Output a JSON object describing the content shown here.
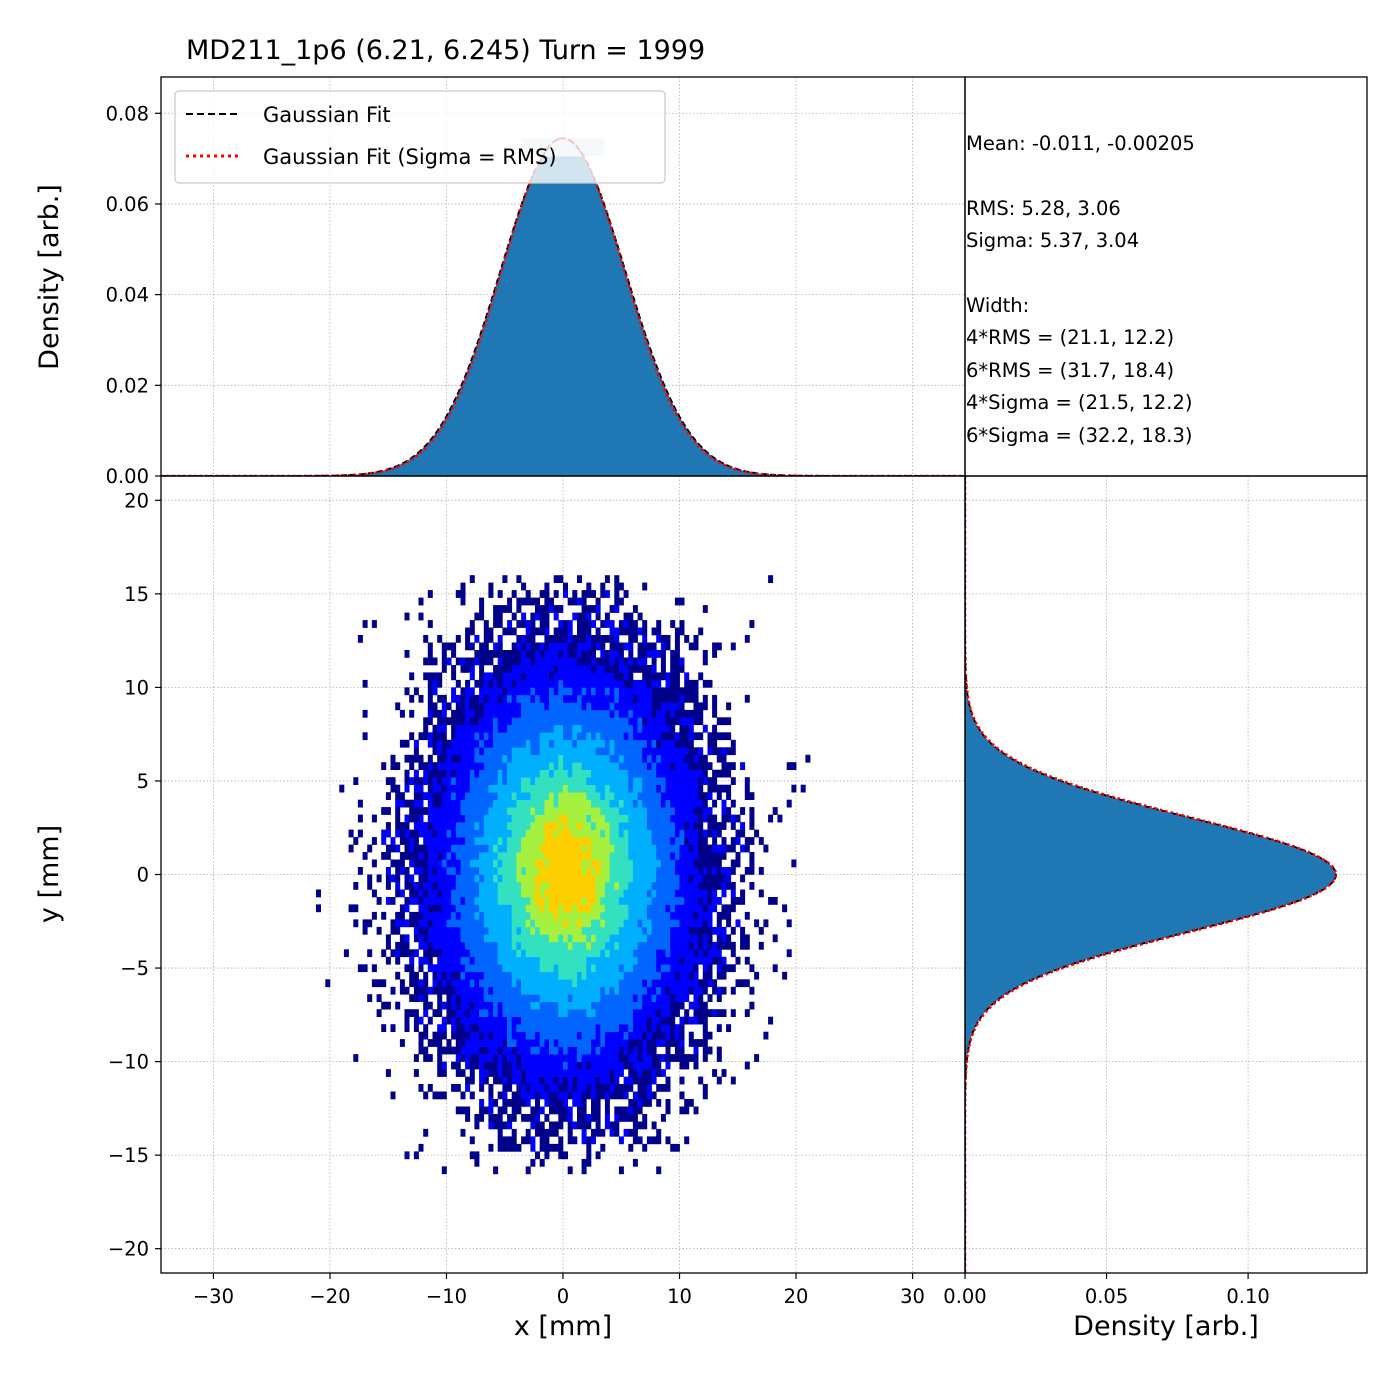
{
  "title": "MD211_1p6 (6.21, 6.245) Turn = 1999",
  "stats": {
    "mean": "Mean: -0.011, -0.00205",
    "rms": "RMS: 5.28, 3.06",
    "sigma": "Sigma: 5.37, 3.04",
    "width_label": "Width:",
    "rms4": "4*RMS = (21.1, 12.2)",
    "rms6": "6*RMS = (31.7, 18.4)",
    "sigma4": "4*Sigma = (21.5, 12.2)",
    "sigma6": "6*Sigma = (32.2, 18.3)"
  },
  "legend": {
    "position": "top-left",
    "entries": [
      "Gaussian Fit",
      "Gaussian Fit (Sigma = RMS)"
    ]
  },
  "colors": {
    "histogram": "#1f77b4",
    "fit": "#000000",
    "fit_rms": "#ff0000",
    "grid": "#b0b0b0"
  },
  "chart_data": [
    {
      "type": "bar",
      "panel": "x-projection",
      "ylabel": "Density [arb.]",
      "xlim": [
        -34.5,
        34.5
      ],
      "ylim": [
        0,
        0.088
      ],
      "yticks": [
        "0.00",
        "0.02",
        "0.04",
        "0.06",
        "0.08"
      ],
      "grid": true,
      "distribution": {
        "mean": -0.011,
        "sigma": 5.37,
        "rms": 5.28,
        "peak": 0.0745,
        "range": [
          -22.5,
          23.5
        ]
      },
      "series": [
        {
          "name": "Gaussian Fit",
          "style": "dashed",
          "mean": -0.011,
          "sigma": 5.37
        },
        {
          "name": "Gaussian Fit (Sigma = RMS)",
          "style": "dotted",
          "mean": -0.011,
          "sigma": 5.28
        }
      ]
    },
    {
      "type": "heatmap",
      "panel": "xy-density",
      "xlabel": "x [mm]",
      "ylabel": "y [mm]",
      "xlim": [
        -34.5,
        34.5
      ],
      "ylim": [
        -21.3,
        21.3
      ],
      "xticks": [
        "−30",
        "−20",
        "−10",
        "0",
        "10",
        "20",
        "30"
      ],
      "yticks": [
        "20",
        "15",
        "10",
        "5",
        "0",
        "−5",
        "−10",
        "−15",
        "−20"
      ],
      "grid": true,
      "distribution": {
        "mean_x": -0.011,
        "mean_y": -0.00205,
        "sigma_x": 5.37,
        "sigma_y": 3.04
      },
      "colormap": [
        "#ffffff",
        "#00008b",
        "#0000ff",
        "#0066ff",
        "#00b0ff",
        "#33e0c0",
        "#a6f040",
        "#ffd000"
      ]
    },
    {
      "type": "bar",
      "panel": "y-projection",
      "xlabel": "Density [arb.]",
      "xlim": [
        0,
        0.142
      ],
      "xticks": [
        "0.00",
        "0.05",
        "0.10"
      ],
      "grid": true,
      "distribution": {
        "mean": -0.00205,
        "sigma": 3.04,
        "rms": 3.06,
        "peak": 0.131,
        "range": [
          -14.5,
          13.5
        ]
      },
      "series": [
        {
          "name": "Gaussian Fit",
          "style": "dashed",
          "mean": -0.00205,
          "sigma": 3.04
        },
        {
          "name": "Gaussian Fit (Sigma = RMS)",
          "style": "dotted",
          "mean": -0.00205,
          "sigma": 3.06
        }
      ]
    }
  ]
}
